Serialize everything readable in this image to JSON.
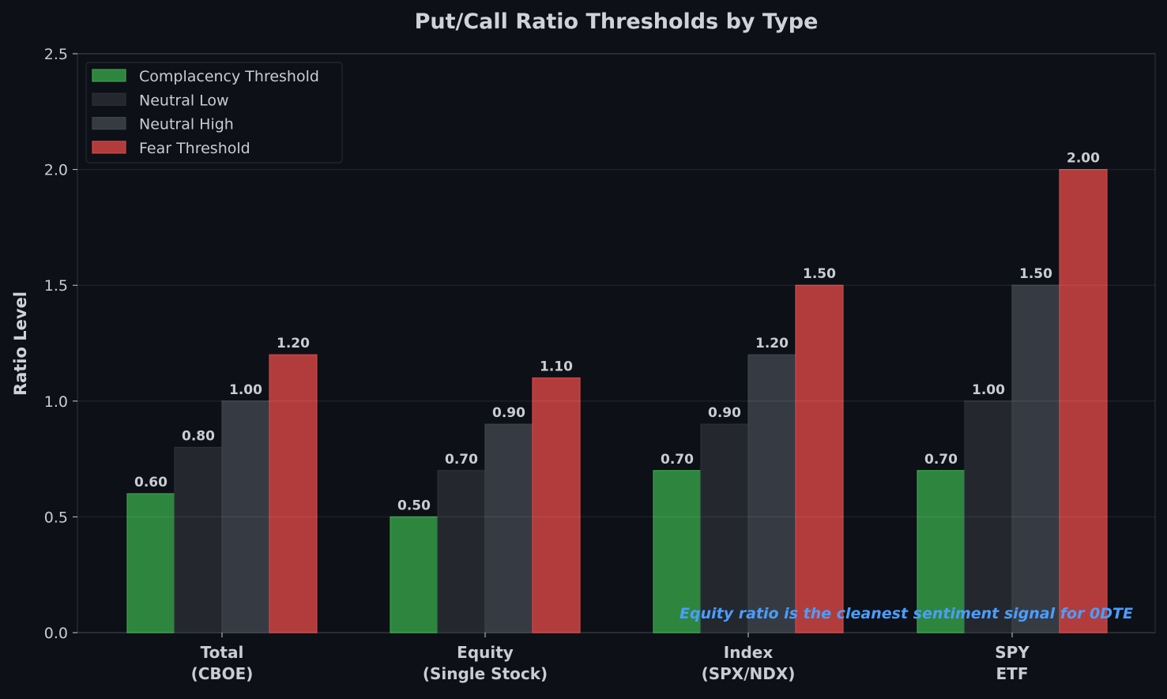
{
  "chart_data": {
    "type": "bar",
    "title": "Put/Call Ratio Thresholds by Type",
    "xlabel": "",
    "ylabel": "Ratio Level",
    "ylim": [
      0,
      2.5
    ],
    "yticks": [
      "0.0",
      "0.5",
      "1.0",
      "1.5",
      "2.0",
      "2.5"
    ],
    "grid": true,
    "legend_position": "top-left",
    "categories": [
      [
        "Total",
        "(CBOE)"
      ],
      [
        "Equity",
        "(Single Stock)"
      ],
      [
        "Index",
        "(SPX/NDX)"
      ],
      [
        "SPY",
        "ETF"
      ]
    ],
    "series": [
      {
        "name": "Complacency Threshold",
        "values": [
          0.6,
          0.5,
          0.7,
          0.7
        ],
        "color": "#2e853e",
        "edge": "#3aa34c"
      },
      {
        "name": "Neutral Low",
        "values": [
          0.8,
          0.7,
          0.9,
          1.0
        ],
        "color": "#24272e",
        "edge": "#2c3038"
      },
      {
        "name": "Neutral High",
        "values": [
          1.0,
          0.9,
          1.2,
          1.5
        ],
        "color": "#363b43",
        "edge": "#3e434c"
      },
      {
        "name": "Fear Threshold",
        "values": [
          1.2,
          1.1,
          1.5,
          2.0
        ],
        "color": "#b23c3c",
        "edge": "#d24848"
      }
    ],
    "data_labels": [
      [
        "0.60",
        "0.50",
        "0.70",
        "0.70"
      ],
      [
        "0.80",
        "0.70",
        "0.90",
        "1.00"
      ],
      [
        "1.00",
        "0.90",
        "1.20",
        "1.50"
      ],
      [
        "1.20",
        "1.10",
        "1.50",
        "2.00"
      ]
    ],
    "annotation": "Equity ratio is the cleanest sentiment signal for 0DTE",
    "annotation_color": "#4a9eff"
  }
}
